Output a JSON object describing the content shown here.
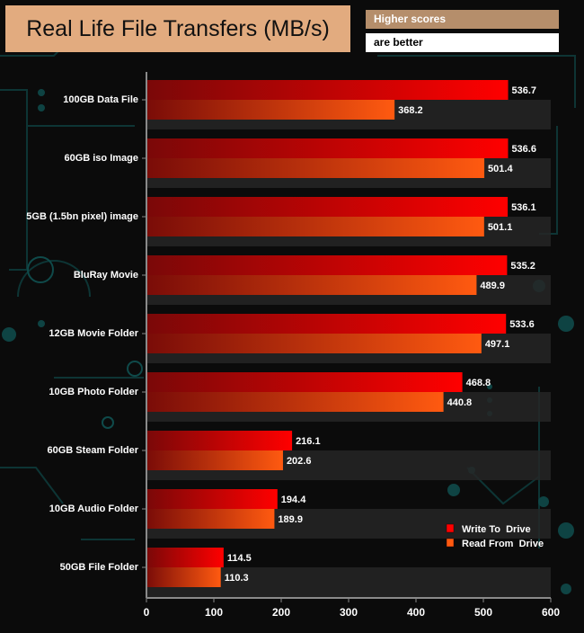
{
  "title": "Real Life File Transfers (MB/s)",
  "note_line1": "Higher scores",
  "note_line2": "are better",
  "colors": {
    "write": "#ff0000",
    "write_dark": "#7a0808",
    "read": "#ff5a10",
    "read_dark": "#7a0c08",
    "title_bg": "#e2ab7f",
    "note_bg": "#b58e6b",
    "band": "#262626",
    "text": "#ffffff"
  },
  "chart_data": {
    "type": "bar",
    "orientation": "horizontal",
    "title": "Real Life File Transfers (MB/s)",
    "xlabel": "",
    "ylabel": "",
    "xlim": [
      0,
      600
    ],
    "xticks": [
      0,
      100,
      200,
      300,
      400,
      500,
      600
    ],
    "legend_position": "bottom-right",
    "categories": [
      "100GB Data File",
      "60GB iso Image",
      "5GB (1.5bn pixel) image",
      "BluRay Movie",
      "12GB Movie Folder",
      "10GB Photo Folder",
      "60GB Steam Folder",
      "10GB Audio Folder",
      "50GB File Folder"
    ],
    "series": [
      {
        "name": "Write To  Drive",
        "values": [
          536.7,
          536.6,
          536.1,
          535.2,
          533.6,
          468.8,
          216.1,
          194.4,
          114.5
        ]
      },
      {
        "name": "Read From  Drive",
        "values": [
          368.2,
          501.4,
          501.1,
          489.9,
          497.1,
          440.8,
          202.6,
          189.9,
          110.3
        ]
      }
    ]
  }
}
